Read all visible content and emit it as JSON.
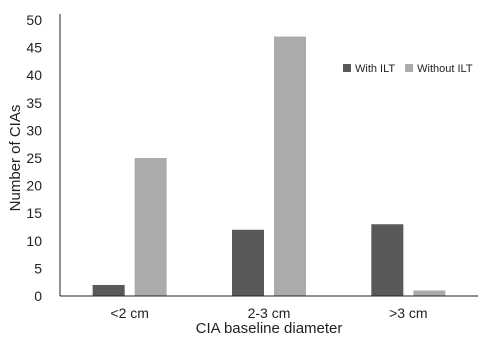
{
  "chart_data": {
    "type": "bar",
    "categories": [
      "<2 cm",
      "2-3 cm",
      ">3 cm"
    ],
    "series": [
      {
        "name": "With ILT",
        "color": "#595959",
        "values": [
          2,
          12,
          13
        ]
      },
      {
        "name": "Without ILT",
        "color": "#ababab",
        "values": [
          25,
          47,
          1
        ]
      }
    ],
    "xlabel": "CIA baseline diameter",
    "ylabel": "Number of CIAs",
    "ylim": [
      0,
      50
    ],
    "yticks": [
      0,
      5,
      10,
      15,
      20,
      25,
      30,
      35,
      40,
      45,
      50
    ],
    "grid": false,
    "legend_position": "top-right"
  }
}
